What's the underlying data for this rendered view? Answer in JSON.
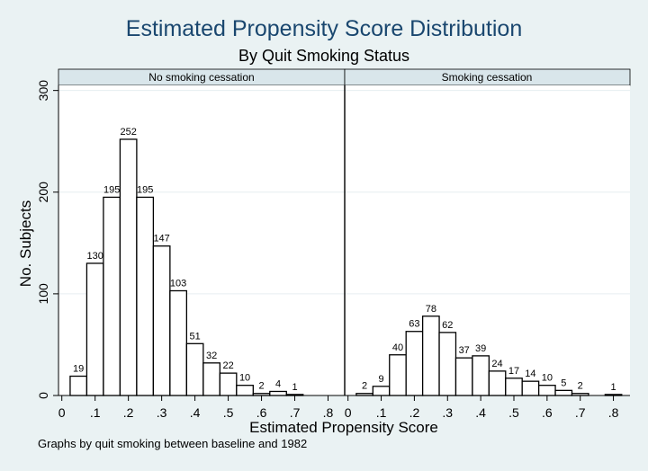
{
  "title": "Estimated Propensity Score Distribution",
  "subtitle": "By Quit Smoking Status",
  "note": "Graphs by quit smoking between baseline and 1982",
  "colors": {
    "background": "#eaf2f3",
    "title": "#1a476f",
    "panel_header": "#d9e6eb",
    "bar_fill": "#ffffff",
    "bar_stroke": "#000000"
  },
  "chart_data": [
    {
      "type": "bar",
      "panel_label": "No smoking cessation",
      "bin_width": 0.05,
      "bin_centers": [
        0.05,
        0.1,
        0.15,
        0.2,
        0.25,
        0.3,
        0.35,
        0.4,
        0.45,
        0.5,
        0.55,
        0.6,
        0.65,
        0.7
      ],
      "values": [
        19,
        130,
        195,
        252,
        195,
        147,
        103,
        51,
        32,
        22,
        10,
        2,
        4,
        1
      ],
      "xlabel": "Estimated Propensity Score",
      "ylabel": "No. Subjects",
      "xticks": [
        "0",
        ".1",
        ".2",
        ".3",
        ".4",
        ".5",
        ".6",
        ".7",
        ".8"
      ],
      "yticks": [
        "0",
        "100",
        "200",
        "300"
      ],
      "xlim": [
        -0.01,
        0.85
      ],
      "ylim": [
        0,
        305
      ],
      "grid": true
    },
    {
      "type": "bar",
      "panel_label": "Smoking cessation",
      "bin_width": 0.05,
      "bin_centers": [
        0.05,
        0.1,
        0.15,
        0.2,
        0.25,
        0.3,
        0.35,
        0.4,
        0.45,
        0.5,
        0.55,
        0.6,
        0.65,
        0.7,
        0.8
      ],
      "values": [
        2,
        9,
        40,
        63,
        78,
        62,
        37,
        39,
        24,
        17,
        14,
        10,
        5,
        2,
        1
      ],
      "xlabel": "Estimated Propensity Score",
      "ylabel": "No. Subjects",
      "xticks": [
        "0",
        ".1",
        ".2",
        ".3",
        ".4",
        ".5",
        ".6",
        ".7",
        ".8"
      ],
      "yticks": [
        "0",
        "100",
        "200",
        "300"
      ],
      "xlim": [
        -0.01,
        0.85
      ],
      "ylim": [
        0,
        305
      ],
      "grid": true
    }
  ]
}
